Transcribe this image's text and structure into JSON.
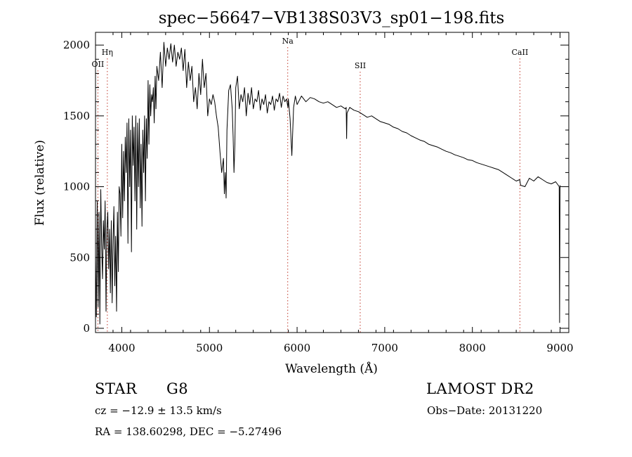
{
  "chart_data": {
    "type": "line",
    "title": "spec−56647−VB138S03V3_sp01−198.fits",
    "xlabel": "Wavelength (Å)",
    "ylabel": "Flux (relative)",
    "xlim": [
      3700,
      9100
    ],
    "ylim": [
      -30,
      2090
    ],
    "x_ticks": [
      4000,
      5000,
      6000,
      7000,
      8000,
      9000
    ],
    "y_ticks": [
      0,
      500,
      1000,
      1500,
      2000
    ],
    "line_color": "#000000",
    "marker_color": "#c0392b",
    "spectral_lines": [
      {
        "label": "OII",
        "wavelength": 3727
      },
      {
        "label": "Hη",
        "wavelength": 3835
      },
      {
        "label": "Na",
        "wavelength": 5893
      },
      {
        "label": "SII",
        "wavelength": 6720
      },
      {
        "label": "CaII",
        "wavelength": 8542
      }
    ],
    "series": [
      {
        "x": [
          3700,
          3710,
          3720,
          3730,
          3740,
          3750,
          3760,
          3770,
          3780,
          3790,
          3800,
          3810,
          3820,
          3830,
          3840,
          3850,
          3860,
          3870,
          3880,
          3890,
          3900,
          3910,
          3920,
          3930,
          3940,
          3950,
          3960,
          3970,
          3980,
          3990,
          4000,
          4010,
          4020,
          4030,
          4040,
          4050,
          4060,
          4070,
          4080,
          4090,
          4100,
          4110,
          4120,
          4130,
          4140,
          4150,
          4160,
          4170,
          4180,
          4190,
          4200,
          4210,
          4220,
          4230,
          4240,
          4250,
          4260,
          4270,
          4280,
          4290,
          4300,
          4310,
          4320,
          4330,
          4340,
          4350,
          4360,
          4370,
          4380,
          4390,
          4400,
          4420,
          4440,
          4460,
          4480,
          4500,
          4520,
          4540,
          4560,
          4580,
          4600,
          4620,
          4640,
          4660,
          4680,
          4700,
          4720,
          4740,
          4760,
          4780,
          4800,
          4820,
          4840,
          4860,
          4880,
          4900,
          4920,
          4940,
          4960,
          4980,
          5000,
          5020,
          5040,
          5060,
          5080,
          5100,
          5120,
          5140,
          5160,
          5170,
          5180,
          5190,
          5200,
          5220,
          5240,
          5260,
          5270,
          5280,
          5290,
          5300,
          5320,
          5340,
          5360,
          5380,
          5400,
          5420,
          5440,
          5460,
          5480,
          5500,
          5520,
          5540,
          5560,
          5580,
          5600,
          5620,
          5640,
          5660,
          5680,
          5700,
          5720,
          5740,
          5760,
          5780,
          5800,
          5820,
          5840,
          5860,
          5880,
          5890,
          5895,
          5900,
          5920,
          5940,
          5960,
          5980,
          6000,
          6050,
          6100,
          6150,
          6200,
          6250,
          6300,
          6350,
          6400,
          6450,
          6500,
          6550,
          6560,
          6565,
          6570,
          6600,
          6650,
          6700,
          6750,
          6800,
          6850,
          6900,
          6950,
          7000,
          7050,
          7100,
          7150,
          7200,
          7250,
          7300,
          7350,
          7400,
          7450,
          7500,
          7550,
          7600,
          7650,
          7700,
          7750,
          7800,
          7850,
          7900,
          7950,
          8000,
          8050,
          8100,
          8150,
          8200,
          8250,
          8300,
          8350,
          8400,
          8450,
          8500,
          8540,
          8545,
          8550,
          8600,
          8650,
          8700,
          8750,
          8800,
          8850,
          8900,
          8950,
          8980,
          8990,
          8995,
          9000
        ],
        "y": [
          520,
          80,
          900,
          150,
          820,
          30,
          980,
          600,
          350,
          760,
          560,
          900,
          120,
          700,
          820,
          420,
          700,
          250,
          760,
          180,
          620,
          860,
          300,
          650,
          120,
          820,
          400,
          1000,
          950,
          650,
          1300,
          780,
          1250,
          900,
          1350,
          1100,
          1450,
          600,
          1480,
          1000,
          1400,
          540,
          1500,
          1150,
          1420,
          900,
          1500,
          700,
          1450,
          1000,
          1480,
          850,
          1300,
          720,
          1400,
          1100,
          1500,
          900,
          1480,
          1200,
          1750,
          1300,
          1720,
          1500,
          1650,
          1600,
          1700,
          1450,
          1780,
          1550,
          1850,
          1750,
          1950,
          1700,
          2020,
          1850,
          1980,
          1900,
          2010,
          1880,
          2000,
          1850,
          1950,
          1900,
          1980,
          1820,
          1970,
          1700,
          1880,
          1750,
          1850,
          1600,
          1700,
          1550,
          1800,
          1650,
          1900,
          1700,
          1800,
          1500,
          1620,
          1580,
          1650,
          1600,
          1500,
          1420,
          1250,
          1100,
          1200,
          950,
          1100,
          920,
          1400,
          1680,
          1720,
          1550,
          1350,
          1100,
          1300,
          1700,
          1780,
          1550,
          1650,
          1600,
          1700,
          1500,
          1660,
          1580,
          1700,
          1550,
          1620,
          1600,
          1680,
          1540,
          1620,
          1580,
          1650,
          1520,
          1600,
          1580,
          1640,
          1540,
          1620,
          1600,
          1660,
          1560,
          1640,
          1600,
          1620,
          1580,
          1560,
          1620,
          1480,
          1220,
          1560,
          1640,
          1580,
          1640,
          1600,
          1630,
          1620,
          1600,
          1590,
          1600,
          1580,
          1560,
          1570,
          1550,
          1560,
          1340,
          1520,
          1560,
          1540,
          1530,
          1510,
          1490,
          1500,
          1480,
          1460,
          1450,
          1440,
          1420,
          1410,
          1390,
          1380,
          1360,
          1345,
          1330,
          1320,
          1300,
          1290,
          1280,
          1265,
          1250,
          1240,
          1225,
          1215,
          1205,
          1190,
          1185,
          1170,
          1160,
          1150,
          1140,
          1130,
          1120,
          1100,
          1080,
          1060,
          1040,
          1050,
          1030,
          1010,
          1000,
          1060,
          1040,
          1070,
          1050,
          1030,
          1020,
          1035,
          1010,
          1000,
          40,
          1010
        ]
      }
    ]
  },
  "info": {
    "object_class": "STAR",
    "subclass": "G8",
    "survey": "LAMOST DR2",
    "redshift": "cz = −12.9 ± 13.5 km/s",
    "obs_date": "Obs−Date: 20131220",
    "coords": "RA = 138.60298, DEC =  −5.27496"
  }
}
